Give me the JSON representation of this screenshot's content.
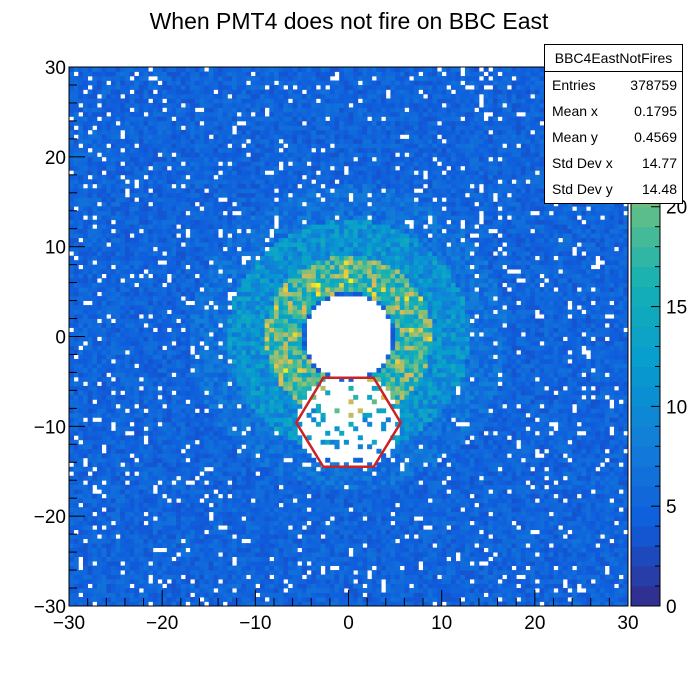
{
  "chart_data": {
    "type": "heatmap",
    "title": "When PMT4 does not fire on BBC East",
    "xlabel": "",
    "ylabel": "",
    "xlim": [
      -30,
      30
    ],
    "ylim": [
      -30,
      30
    ],
    "x_ticks": [
      -30,
      -20,
      -10,
      0,
      10,
      20,
      30
    ],
    "y_ticks": [
      -30,
      -20,
      -10,
      0,
      10,
      20,
      30
    ],
    "x_tick_labels": [
      "−30",
      "−20",
      "−10",
      "0",
      "10",
      "20",
      "30"
    ],
    "y_tick_labels": [
      "−30",
      "−20",
      "−10",
      "0",
      "10",
      "20",
      "30"
    ],
    "z_range": [
      0,
      27
    ],
    "colorbar_ticks": [
      0,
      5,
      10,
      15,
      20
    ],
    "colorbar_tick_labels": [
      "0",
      "5",
      "10",
      "15",
      "20"
    ],
    "features": {
      "background_counts": 5,
      "central_hole_radius": 4.7,
      "bright_ring": {
        "inner_radius": 5,
        "outer_radius": 9,
        "counts": 20
      },
      "second_ring": {
        "inner_radius": 9,
        "outer_radius": 13,
        "counts": 11
      },
      "missing_pmt": {
        "name": "PMT4",
        "center": [
          0,
          -9.6
        ],
        "radius": 5.5,
        "counts": 0
      }
    },
    "overlay": {
      "shape": "hexagon",
      "color": "#cc2222",
      "vertices": [
        [
          -5.6,
          -9.6
        ],
        [
          -2.7,
          -4.6
        ],
        [
          2.7,
          -4.6
        ],
        [
          5.6,
          -9.6
        ],
        [
          2.7,
          -14.5
        ],
        [
          -2.7,
          -14.5
        ]
      ]
    },
    "stats_box": {
      "name": "BBC4EastNotFires",
      "entries_label": "Entries",
      "entries": "378759",
      "mean_x_label": "Mean x",
      "mean_x": "0.1795",
      "mean_y_label": "Mean y",
      "mean_y": "0.4569",
      "std_x_label": "Std Dev x",
      "std_x": "14.77",
      "std_y_label": "Std Dev y",
      "std_y": "14.48"
    }
  }
}
